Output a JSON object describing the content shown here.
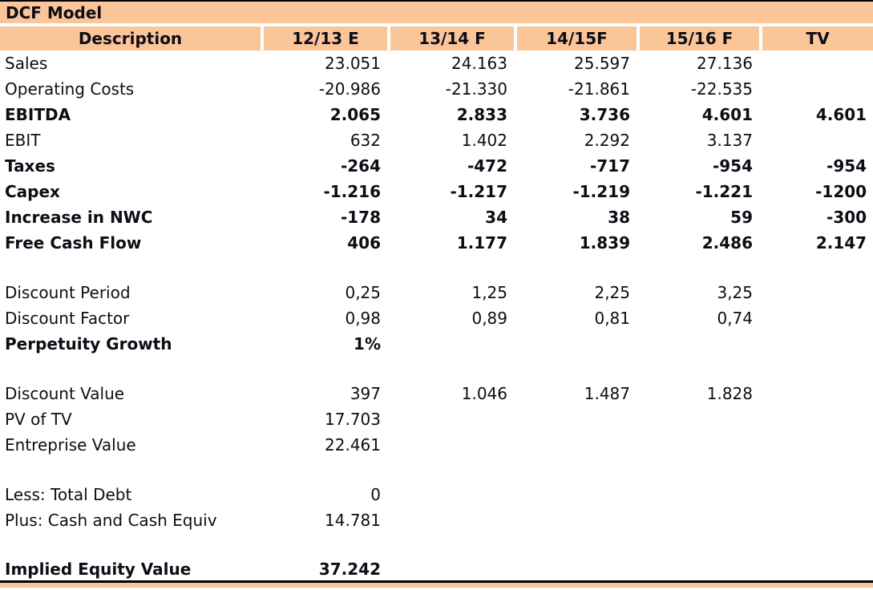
{
  "title": "DCF Model",
  "columns": [
    "Description",
    "12/13 E",
    "13/14 F",
    "14/15F",
    "15/16 F",
    "TV"
  ],
  "rows": [
    {
      "label": "Sales",
      "bold": false,
      "values": [
        "23.051",
        "24.163",
        "25.597",
        "27.136",
        ""
      ]
    },
    {
      "label": "Operating Costs",
      "bold": false,
      "values": [
        "-20.986",
        "-21.330",
        "-21.861",
        "-22.535",
        ""
      ]
    },
    {
      "label": "EBITDA",
      "bold": true,
      "values": [
        "2.065",
        "2.833",
        "3.736",
        "4.601",
        "4.601"
      ]
    },
    {
      "label": "EBIT",
      "bold": false,
      "values": [
        "632",
        "1.402",
        "2.292",
        "3.137",
        ""
      ]
    },
    {
      "label": "Taxes",
      "bold": true,
      "values": [
        "-264",
        "-472",
        "-717",
        "-954",
        "-954"
      ]
    },
    {
      "label": "Capex",
      "bold": true,
      "values": [
        "-1.216",
        "-1.217",
        "-1.219",
        "-1.221",
        "-1200"
      ]
    },
    {
      "label": "Increase in NWC",
      "bold": true,
      "values": [
        "-178",
        "34",
        "38",
        "59",
        "-300"
      ]
    },
    {
      "label": "Free Cash Flow",
      "bold": true,
      "values": [
        "406",
        "1.177",
        "1.839",
        "2.486",
        "2.147"
      ]
    },
    {
      "spacer": true
    },
    {
      "label": "Discount Period",
      "bold": false,
      "values": [
        "0,25",
        "1,25",
        "2,25",
        "3,25",
        ""
      ]
    },
    {
      "label": "Discount Factor",
      "bold": false,
      "values": [
        "0,98",
        "0,89",
        "0,81",
        "0,74",
        ""
      ]
    },
    {
      "label": "Perpetuity Growth",
      "bold": true,
      "values": [
        "1%",
        "",
        "",
        "",
        ""
      ]
    },
    {
      "spacer": true
    },
    {
      "label": "Discount Value",
      "bold": false,
      "values": [
        "397",
        "1.046",
        "1.487",
        "1.828",
        ""
      ]
    },
    {
      "label": "PV of TV",
      "bold": false,
      "values": [
        "17.703",
        "",
        "",
        "",
        ""
      ]
    },
    {
      "label": "Entreprise Value",
      "bold": false,
      "values": [
        "22.461",
        "",
        "",
        "",
        ""
      ]
    },
    {
      "spacer": true
    },
    {
      "label": "Less: Total Debt",
      "bold": false,
      "values": [
        "0",
        "",
        "",
        "",
        ""
      ]
    },
    {
      "label": "Plus: Cash and Cash Equiv",
      "bold": false,
      "values": [
        "14.781",
        "",
        "",
        "",
        ""
      ]
    },
    {
      "spacer": true
    },
    {
      "label": "Implied Equity Value",
      "bold": true,
      "final": true,
      "values": [
        "37.242",
        "",
        "",
        "",
        ""
      ]
    }
  ],
  "colors": {
    "header_bg": "#fbc59a",
    "rule": "#000000",
    "text": "#0d0d16"
  }
}
